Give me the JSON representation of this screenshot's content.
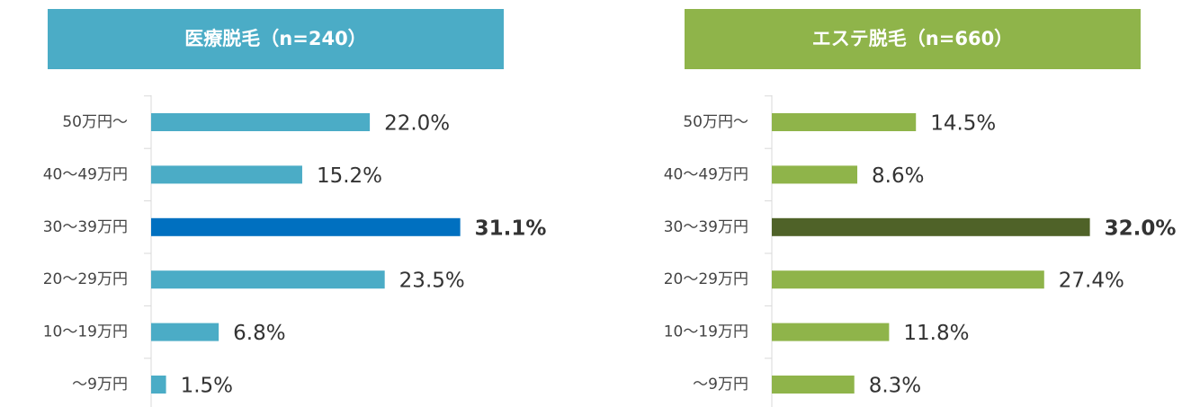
{
  "chart_data": [
    {
      "type": "barh",
      "title": "医療脱毛（n=240）",
      "title_color": "#4bacc6",
      "categories": [
        "50万円～",
        "40～49万円",
        "30～39万円",
        "20～29万円",
        "10～19万円",
        "～9万円"
      ],
      "values": [
        22.0,
        15.2,
        31.1,
        23.5,
        6.8,
        1.5
      ],
      "value_labels": [
        "22.0%",
        "15.2%",
        "31.1%",
        "23.5%",
        "6.8%",
        "1.5%"
      ],
      "colors": [
        "#4bacc6",
        "#4bacc6",
        "#0070c0",
        "#4bacc6",
        "#4bacc6",
        "#4bacc6"
      ]
    },
    {
      "type": "barh",
      "title": "エステ脱毛（n=660）",
      "title_color": "#8fb44a",
      "categories": [
        "50万円～",
        "40～49万円",
        "30～39万円",
        "20～29万円",
        "10～19万円",
        "～9万円"
      ],
      "values": [
        14.5,
        8.6,
        32.0,
        27.4,
        11.8,
        8.3
      ],
      "value_labels": [
        "14.5%",
        "8.6%",
        "32.0%",
        "27.4%",
        "11.8%",
        "8.3%"
      ],
      "colors": [
        "#8fb44a",
        "#8fb44a",
        "#4f6228",
        "#8fb44a",
        "#8fb44a",
        "#8fb44a"
      ]
    }
  ]
}
